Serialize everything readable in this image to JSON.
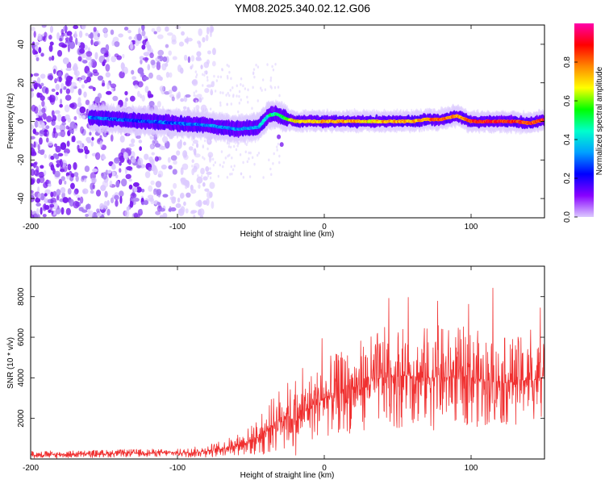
{
  "figure": {
    "title": "YM08.2025.340.02.12.G06"
  },
  "colors": {
    "background": "#ffffff",
    "axis": "#000000",
    "snr_line": "#f03030",
    "low_amplitude": "#dccaff",
    "mid_amplitude": "#7a1cf0",
    "track_core": "#0060ff"
  },
  "chart_data": [
    {
      "type": "heatmap",
      "xlabel": "Height of straight line (km)",
      "ylabel": "Frequency (Hz)",
      "xlim": [
        -200,
        150
      ],
      "ylim": [
        -50,
        50
      ],
      "x_ticks": [
        -200,
        -100,
        0,
        100
      ],
      "y_ticks": [
        -40,
        -20,
        0,
        20,
        40
      ],
      "colorbar": {
        "label": "Normalized spectral amplitude",
        "range": [
          0,
          1
        ],
        "ticks": [
          0.0,
          0.2,
          0.4,
          0.6,
          0.8
        ],
        "colormap": [
          "#dccaff",
          "#8800ff",
          "#0000ff",
          "#00a0ff",
          "#00ffcc",
          "#00ff00",
          "#ffff00",
          "#ff8800",
          "#ff0000",
          "#ff00aa"
        ]
      },
      "track": {
        "description_x": [
          -160,
          -140,
          -120,
          -100,
          -80,
          -60,
          -45,
          -38,
          -33,
          -28,
          -20,
          -10,
          0,
          10,
          20,
          30,
          40,
          50,
          60,
          70,
          80,
          90,
          100,
          110,
          120,
          130,
          140,
          150
        ],
        "frequency_hz": [
          2,
          1,
          0,
          -1,
          -2,
          -4,
          -3,
          3,
          4,
          2,
          0,
          0,
          0,
          0,
          0,
          0,
          0,
          0,
          0,
          1,
          1,
          3,
          0,
          0,
          0,
          0,
          -1,
          1
        ],
        "amplitude": [
          0.3,
          0.25,
          0.25,
          0.25,
          0.3,
          0.3,
          0.35,
          0.45,
          0.45,
          0.5,
          0.7,
          0.7,
          0.75,
          0.75,
          0.75,
          0.7,
          0.75,
          0.75,
          0.75,
          0.8,
          0.85,
          0.75,
          0.85,
          0.9,
          0.9,
          0.9,
          0.85,
          0.85
        ]
      },
      "noise_region_x": [
        -200,
        -85
      ]
    },
    {
      "type": "line",
      "xlabel": "Height of straight line (km)",
      "ylabel": "SNR (10 * v/v)",
      "xlim": [
        -200,
        150
      ],
      "ylim": [
        0,
        9500
      ],
      "x_ticks": [
        -200,
        -100,
        0,
        100
      ],
      "y_ticks": [
        2000,
        4000,
        6000,
        8000
      ],
      "series": [
        {
          "x": [
            -200,
            -180,
            -160,
            -140,
            -120,
            -100,
            -90,
            -80,
            -70,
            -60,
            -50,
            -40,
            -35,
            -30,
            -25,
            -20,
            -15,
            -10,
            -5,
            0,
            10,
            20,
            30,
            40,
            50,
            60,
            70,
            80,
            90,
            100,
            110,
            120,
            130,
            140,
            150
          ],
          "mean": [
            200,
            220,
            250,
            280,
            300,
            300,
            320,
            400,
            500,
            700,
            900,
            1300,
            1700,
            2000,
            2200,
            1800,
            2200,
            2600,
            2800,
            3000,
            3200,
            3500,
            3800,
            4000,
            4100,
            4100,
            4000,
            4000,
            4100,
            4000,
            3900,
            3800,
            3900,
            3900,
            4000
          ],
          "spread": [
            150,
            150,
            150,
            150,
            150,
            150,
            200,
            250,
            300,
            400,
            600,
            900,
            1100,
            1300,
            1300,
            1300,
            1300,
            1400,
            1400,
            1500,
            1600,
            1700,
            1800,
            1900,
            2000,
            2000,
            2000,
            2000,
            1900,
            1900,
            1800,
            1700,
            1700,
            1600,
            1600
          ]
        }
      ]
    }
  ]
}
